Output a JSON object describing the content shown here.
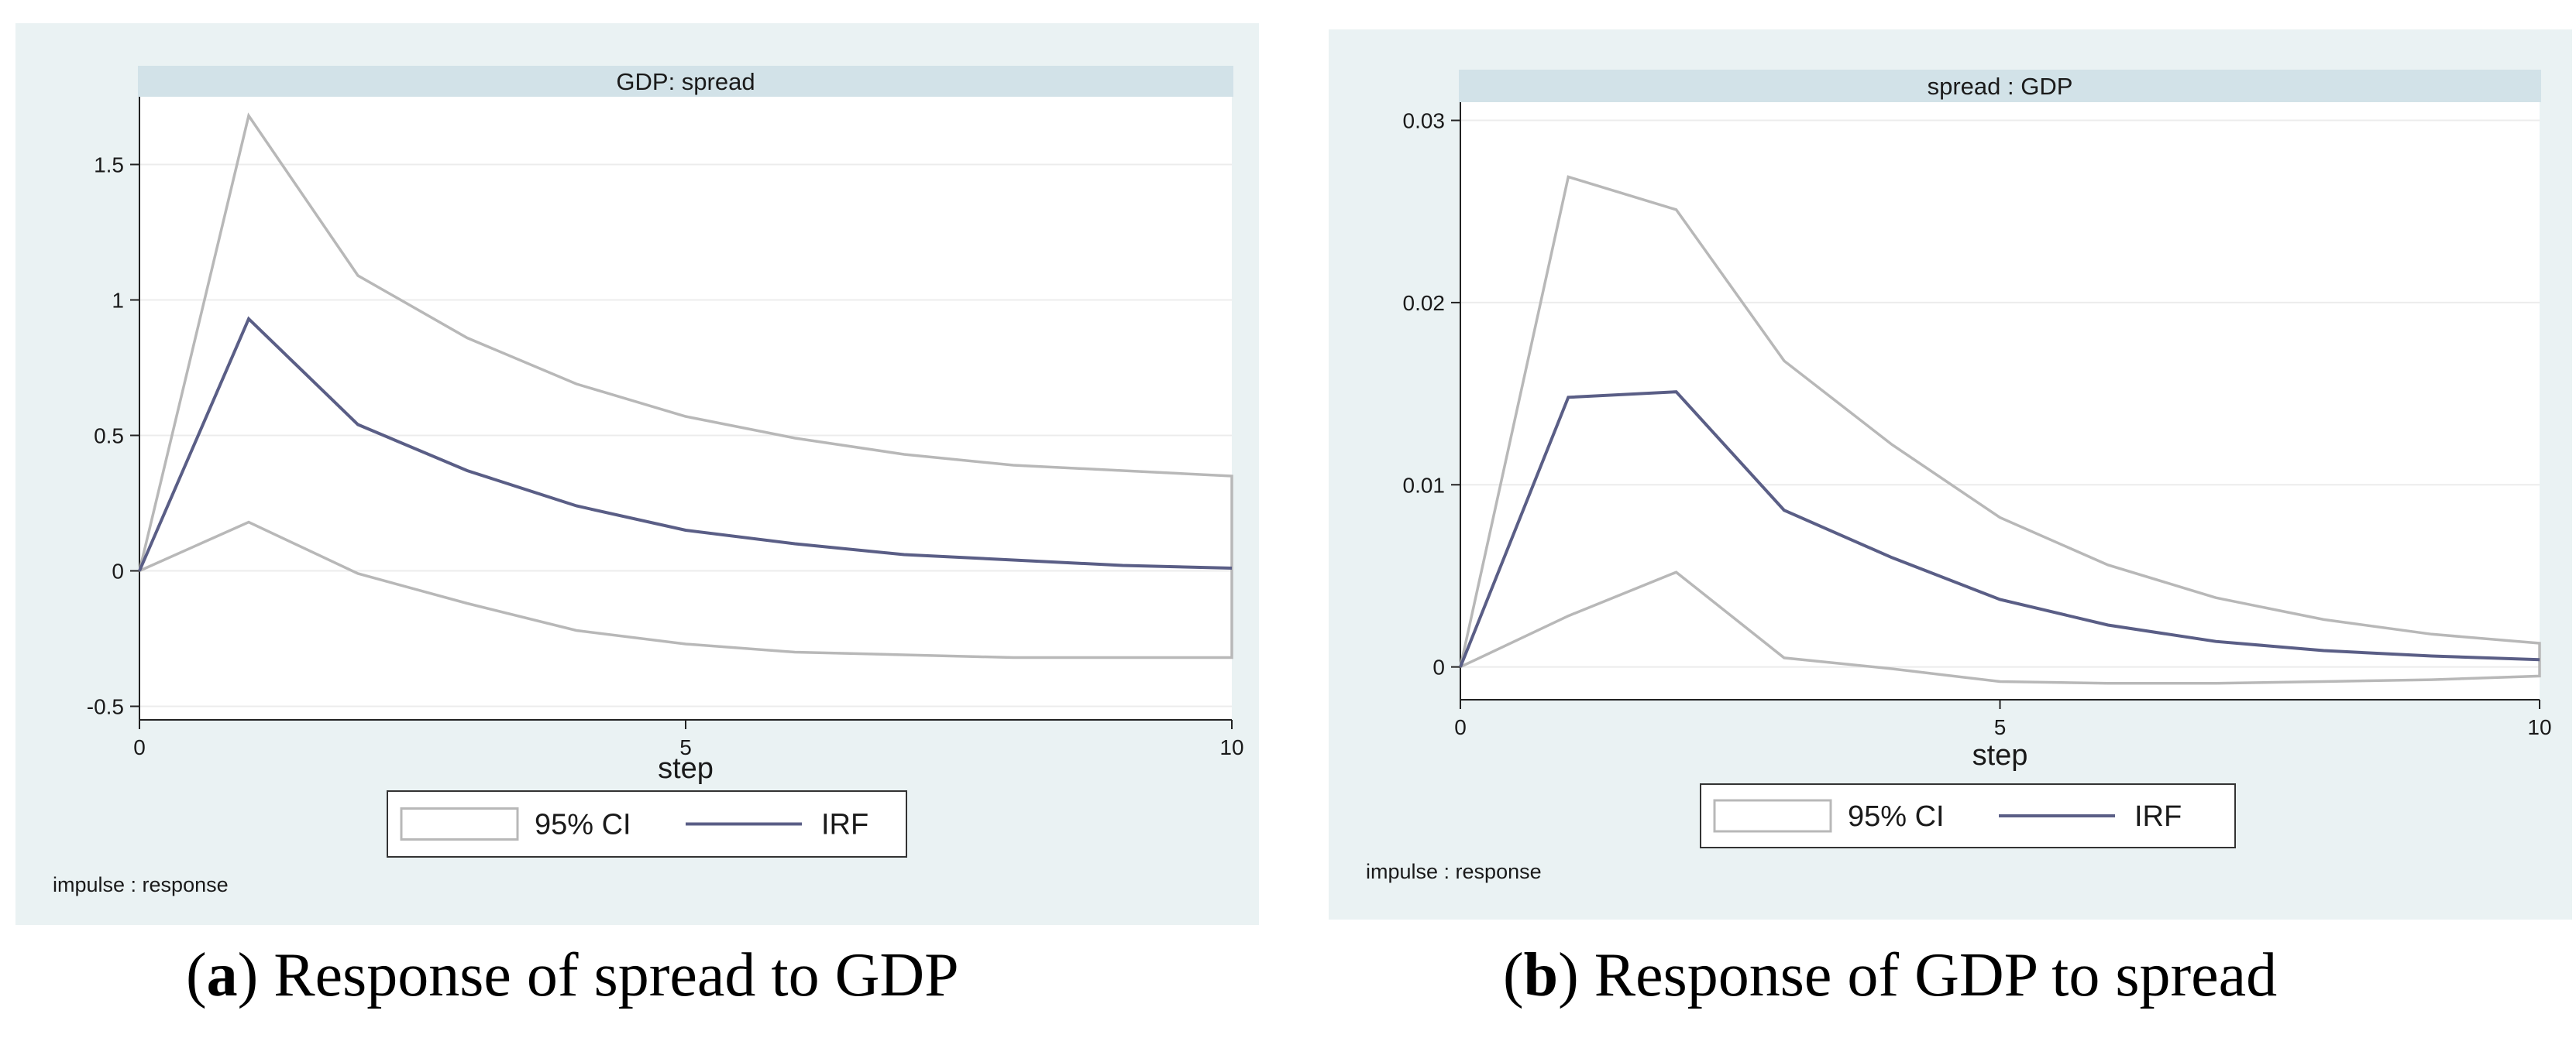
{
  "chart_data": [
    {
      "type": "line",
      "panel_label": "a",
      "title": "GDP: spread",
      "xlabel": "step",
      "ylabel": "",
      "xlim": [
        0,
        10
      ],
      "ylim": [
        -0.55,
        1.75
      ],
      "xticks": [
        0,
        5,
        10
      ],
      "xtick_labels": [
        "0",
        "5",
        "10"
      ],
      "yticks": [
        -0.5,
        0,
        0.5,
        1,
        1.5
      ],
      "ytick_labels": [
        "-0.5",
        "0",
        "0.5",
        "1",
        "1.5"
      ],
      "x": [
        0,
        1,
        2,
        3,
        4,
        5,
        6,
        7,
        8,
        9,
        10
      ],
      "series": [
        {
          "name": "IRF",
          "values": [
            0,
            0.93,
            0.54,
            0.37,
            0.24,
            0.15,
            0.1,
            0.06,
            0.04,
            0.02,
            0.01
          ]
        },
        {
          "name": "95% CI upper",
          "values": [
            0,
            1.68,
            1.09,
            0.86,
            0.69,
            0.57,
            0.49,
            0.43,
            0.39,
            0.37,
            0.35
          ]
        },
        {
          "name": "95% CI lower",
          "values": [
            0,
            0.18,
            -0.01,
            -0.12,
            -0.22,
            -0.27,
            -0.3,
            -0.31,
            -0.32,
            -0.32,
            -0.32
          ]
        }
      ],
      "legend": [
        "95% CI",
        "IRF"
      ],
      "legend_position": "bottom",
      "note": "impulse : response",
      "caption_label": "a",
      "caption_text": ") Response of spread to GDP",
      "colors": {
        "irf": "#5a5e86",
        "ci": "#b8b8b8",
        "title_bar": "#d2e2e8",
        "plot_bg": "#ffffff",
        "panel_bg": "#eaf2f3"
      }
    },
    {
      "type": "line",
      "panel_label": "b",
      "title": "spread : GDP",
      "xlabel": "step",
      "ylabel": "",
      "xlim": [
        0,
        10
      ],
      "ylim": [
        -0.0018,
        0.031
      ],
      "xticks": [
        0,
        5,
        10
      ],
      "xtick_labels": [
        "0",
        "5",
        "10"
      ],
      "yticks": [
        0,
        0.01,
        0.02,
        0.03
      ],
      "ytick_labels": [
        "0",
        "0.01",
        "0.02",
        "0.03"
      ],
      "x": [
        0,
        1,
        2,
        3,
        4,
        5,
        6,
        7,
        8,
        9,
        10
      ],
      "series": [
        {
          "name": "IRF",
          "values": [
            0,
            0.0148,
            0.0151,
            0.0086,
            0.006,
            0.0037,
            0.0023,
            0.0014,
            0.0009,
            0.0006,
            0.0004
          ]
        },
        {
          "name": "95% CI upper",
          "values": [
            0,
            0.0269,
            0.0251,
            0.0168,
            0.0122,
            0.0082,
            0.0056,
            0.0038,
            0.0026,
            0.0018,
            0.0013
          ]
        },
        {
          "name": "95% CI lower",
          "values": [
            0,
            0.0028,
            0.0052,
            0.0005,
            -0.0001,
            -0.0008,
            -0.0009,
            -0.0009,
            -0.0008,
            -0.0007,
            -0.0005
          ]
        }
      ],
      "legend": [
        "95% CI",
        "IRF"
      ],
      "legend_position": "bottom",
      "note": "impulse : response",
      "caption_label": "b",
      "caption_text": ") Response of GDP to spread",
      "colors": {
        "irf": "#5a5e86",
        "ci": "#b8b8b8",
        "title_bar": "#d2e2e8",
        "plot_bg": "#ffffff",
        "panel_bg": "#eaf2f3"
      }
    }
  ]
}
